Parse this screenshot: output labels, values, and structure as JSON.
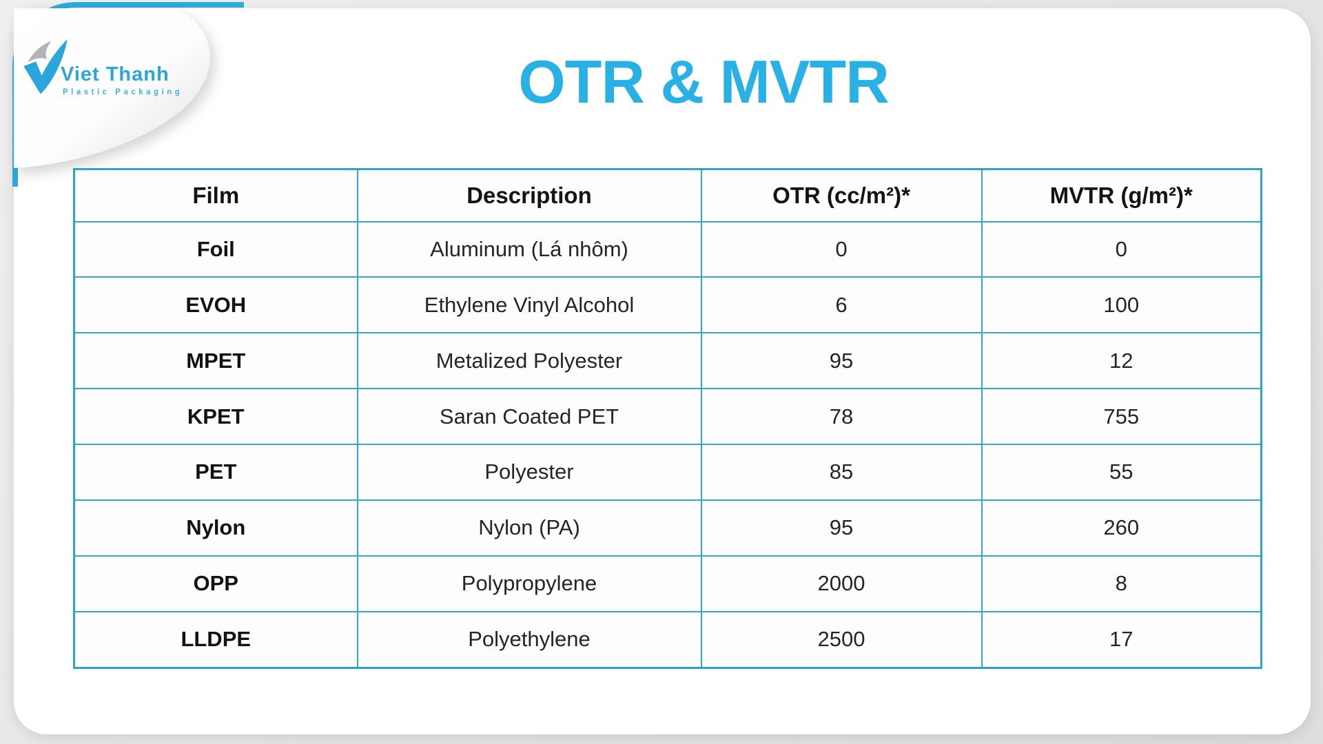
{
  "page": {
    "background_color": "#e7e7e7",
    "card_color": "#ffffff",
    "accent_color": "#29b1e6",
    "table_border_color": "#2fa3c4"
  },
  "brand": {
    "name": "Viet Thanh",
    "tagline": "Plastic Packaging",
    "logo_icon": "checkmark-swoosh-icon"
  },
  "title": "OTR & MVTR",
  "table": {
    "columns": [
      "Film",
      "Description",
      "OTR (cc/m²)*",
      "MVTR (g/m²)*"
    ],
    "rows": [
      {
        "film": "Foil",
        "description": "Aluminum (Lá nhôm)",
        "otr": "0",
        "mvtr": "0"
      },
      {
        "film": "EVOH",
        "description": "Ethylene Vinyl Alcohol",
        "otr": "6",
        "mvtr": "100"
      },
      {
        "film": "MPET",
        "description": "Metalized Polyester",
        "otr": "95",
        "mvtr": "12"
      },
      {
        "film": "KPET",
        "description": "Saran Coated PET",
        "otr": "78",
        "mvtr": "755"
      },
      {
        "film": "PET",
        "description": "Polyester",
        "otr": "85",
        "mvtr": "55"
      },
      {
        "film": "Nylon",
        "description": "Nylon (PA)",
        "otr": "95",
        "mvtr": "260"
      },
      {
        "film": "OPP",
        "description": "Polypropylene",
        "otr": "2000",
        "mvtr": "8"
      },
      {
        "film": "LLDPE",
        "description": "Polyethylene",
        "otr": "2500",
        "mvtr": "17"
      }
    ]
  }
}
